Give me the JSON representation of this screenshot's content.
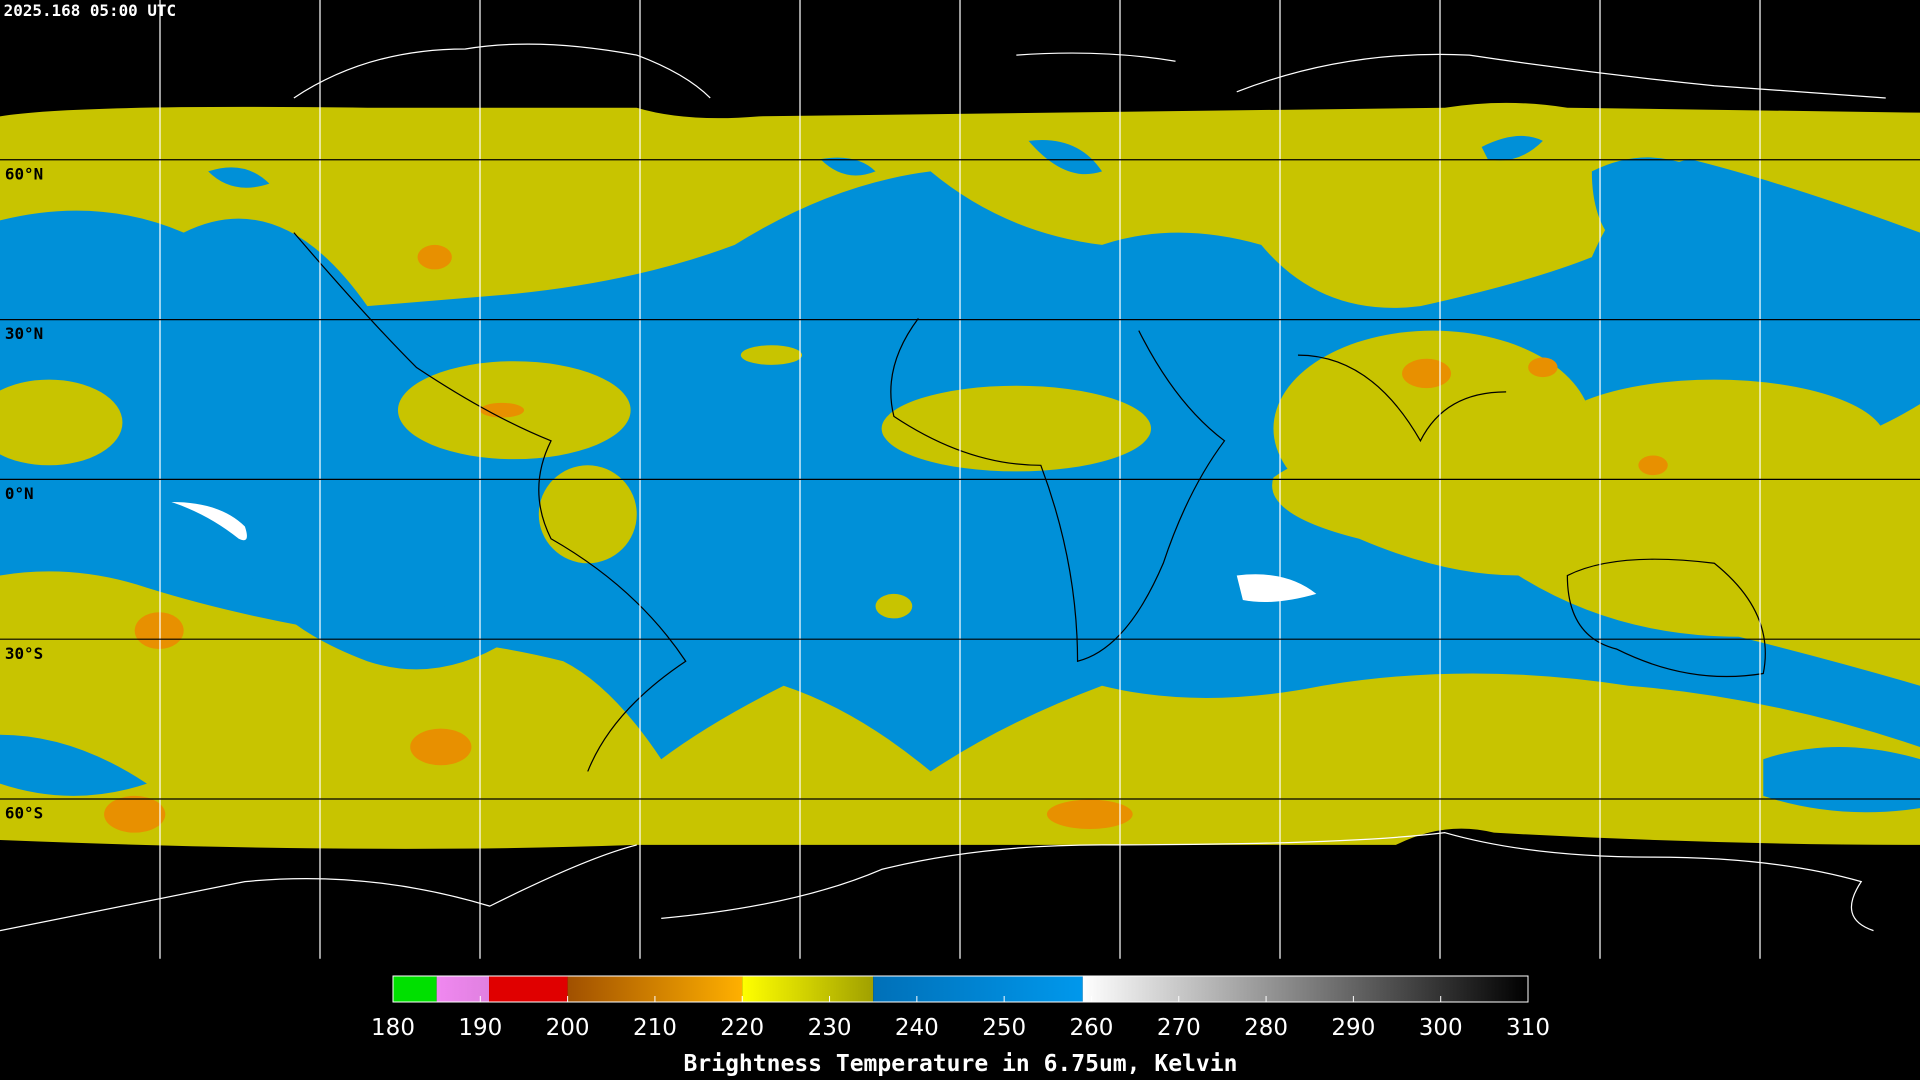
{
  "title": "2025.168 05:00 UTC",
  "lat_labels": [
    "60°N",
    "30°N",
    "0°N",
    "30°S",
    "60°S"
  ],
  "colorbar": {
    "label": "Brightness Temperature in 6.75um, Kelvin",
    "lim": [
      180,
      310
    ],
    "ticks": [
      180,
      190,
      200,
      210,
      220,
      230,
      240,
      250,
      260,
      270,
      280,
      290,
      300,
      310
    ],
    "segments": [
      {
        "from": 180,
        "to": 185,
        "color_start": "#00e000",
        "color_end": "#00e000"
      },
      {
        "from": 185,
        "to": 191,
        "color_start": "#f088f0",
        "color_end": "#e080e0"
      },
      {
        "from": 191,
        "to": 200,
        "color_start": "#e00000",
        "color_end": "#e00000"
      },
      {
        "from": 200,
        "to": 220,
        "color_start": "#a05000",
        "color_end": "#ffb000"
      },
      {
        "from": 220,
        "to": 235,
        "color_start": "#ffff00",
        "color_end": "#a0a000"
      },
      {
        "from": 235,
        "to": 259,
        "color_start": "#0070b8",
        "color_end": "#0098ec"
      },
      {
        "from": 259,
        "to": 310,
        "color_start": "#ffffff",
        "color_end": "#000000"
      }
    ]
  }
}
